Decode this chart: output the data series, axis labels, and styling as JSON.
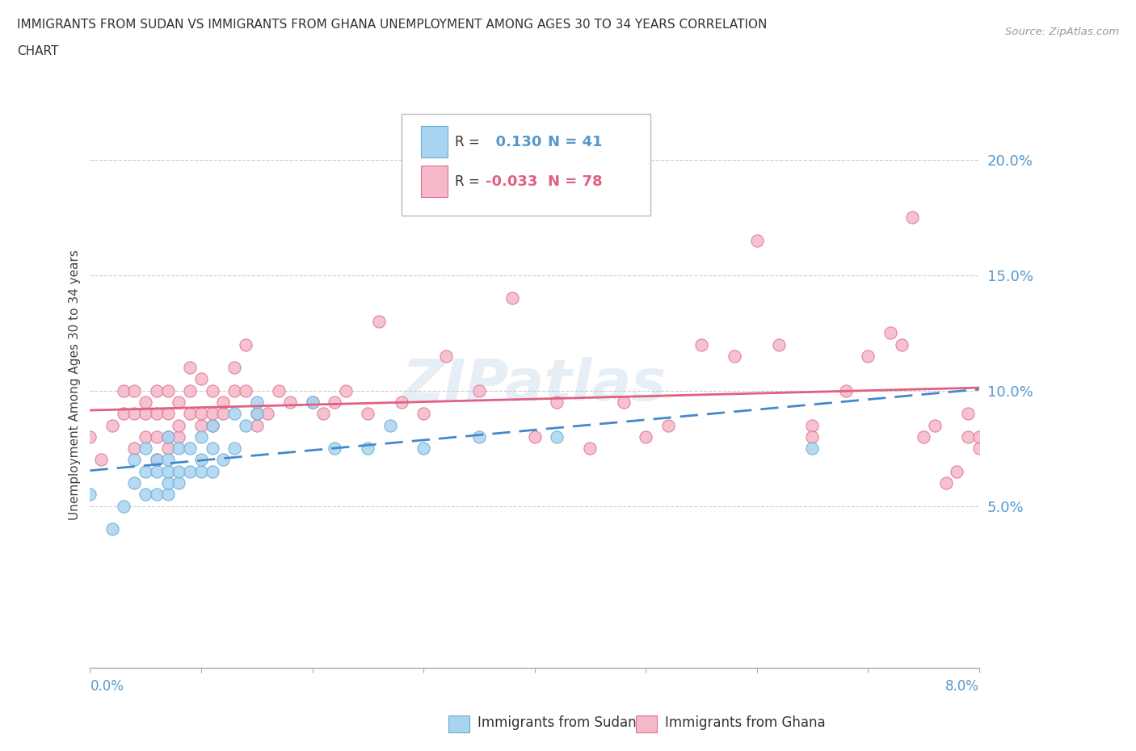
{
  "title_line1": "IMMIGRANTS FROM SUDAN VS IMMIGRANTS FROM GHANA UNEMPLOYMENT AMONG AGES 30 TO 34 YEARS CORRELATION",
  "title_line2": "CHART",
  "source_text": "Source: ZipAtlas.com",
  "ylabel_label": "Unemployment Among Ages 30 to 34 years",
  "right_ytick_labels": [
    "20.0%",
    "15.0%",
    "10.0%",
    "5.0%"
  ],
  "right_ytick_values": [
    0.2,
    0.15,
    0.1,
    0.05
  ],
  "xlim": [
    0.0,
    0.08
  ],
  "ylim": [
    -0.02,
    0.225
  ],
  "sudan_color": "#a8d4f0",
  "ghana_color": "#f5b8c8",
  "sudan_edge": "#6aabd4",
  "ghana_edge": "#e07090",
  "sudan_R": 0.13,
  "sudan_N": 41,
  "ghana_R": -0.033,
  "ghana_N": 78,
  "legend_label_sudan": "Immigrants from Sudan",
  "legend_label_ghana": "Immigrants from Ghana",
  "watermark": "ZIPatlas",
  "sudan_line_color": "#4488cc",
  "ghana_line_color": "#e06080",
  "sudan_scatter_x": [
    0.0,
    0.002,
    0.003,
    0.004,
    0.004,
    0.005,
    0.005,
    0.005,
    0.006,
    0.006,
    0.006,
    0.007,
    0.007,
    0.007,
    0.007,
    0.007,
    0.008,
    0.008,
    0.008,
    0.009,
    0.009,
    0.01,
    0.01,
    0.01,
    0.011,
    0.011,
    0.011,
    0.012,
    0.013,
    0.013,
    0.014,
    0.015,
    0.015,
    0.02,
    0.022,
    0.025,
    0.027,
    0.03,
    0.035,
    0.042,
    0.065
  ],
  "sudan_scatter_y": [
    0.055,
    0.04,
    0.05,
    0.06,
    0.07,
    0.055,
    0.065,
    0.075,
    0.055,
    0.065,
    0.07,
    0.055,
    0.06,
    0.065,
    0.07,
    0.08,
    0.06,
    0.065,
    0.075,
    0.065,
    0.075,
    0.065,
    0.07,
    0.08,
    0.065,
    0.075,
    0.085,
    0.07,
    0.075,
    0.09,
    0.085,
    0.09,
    0.095,
    0.095,
    0.075,
    0.075,
    0.085,
    0.075,
    0.08,
    0.08,
    0.075
  ],
  "ghana_scatter_x": [
    0.0,
    0.001,
    0.002,
    0.003,
    0.003,
    0.004,
    0.004,
    0.004,
    0.005,
    0.005,
    0.005,
    0.006,
    0.006,
    0.006,
    0.006,
    0.007,
    0.007,
    0.007,
    0.007,
    0.008,
    0.008,
    0.008,
    0.009,
    0.009,
    0.009,
    0.01,
    0.01,
    0.01,
    0.011,
    0.011,
    0.011,
    0.012,
    0.012,
    0.013,
    0.013,
    0.014,
    0.014,
    0.015,
    0.015,
    0.016,
    0.017,
    0.018,
    0.02,
    0.021,
    0.022,
    0.023,
    0.025,
    0.026,
    0.028,
    0.03,
    0.032,
    0.035,
    0.038,
    0.04,
    0.042,
    0.045,
    0.048,
    0.05,
    0.052,
    0.055,
    0.058,
    0.06,
    0.062,
    0.065,
    0.065,
    0.068,
    0.07,
    0.072,
    0.073,
    0.074,
    0.075,
    0.076,
    0.077,
    0.078,
    0.079,
    0.079,
    0.08,
    0.08
  ],
  "ghana_scatter_y": [
    0.08,
    0.07,
    0.085,
    0.09,
    0.1,
    0.075,
    0.09,
    0.1,
    0.08,
    0.09,
    0.095,
    0.07,
    0.08,
    0.09,
    0.1,
    0.075,
    0.08,
    0.09,
    0.1,
    0.08,
    0.085,
    0.095,
    0.09,
    0.1,
    0.11,
    0.085,
    0.09,
    0.105,
    0.085,
    0.09,
    0.1,
    0.09,
    0.095,
    0.1,
    0.11,
    0.1,
    0.12,
    0.085,
    0.09,
    0.09,
    0.1,
    0.095,
    0.095,
    0.09,
    0.095,
    0.1,
    0.09,
    0.13,
    0.095,
    0.09,
    0.115,
    0.1,
    0.14,
    0.08,
    0.095,
    0.075,
    0.095,
    0.08,
    0.085,
    0.12,
    0.115,
    0.165,
    0.12,
    0.085,
    0.08,
    0.1,
    0.115,
    0.125,
    0.12,
    0.175,
    0.08,
    0.085,
    0.06,
    0.065,
    0.08,
    0.09,
    0.08,
    0.075
  ]
}
